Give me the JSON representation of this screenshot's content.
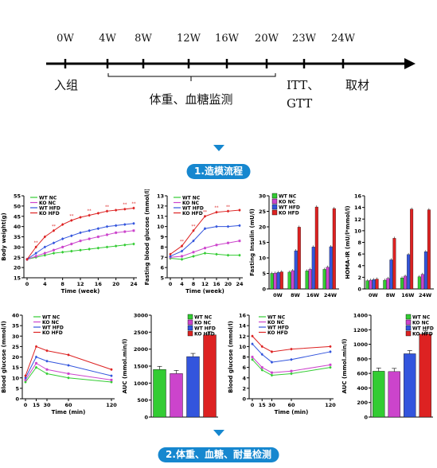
{
  "timeline": {
    "weeks": [
      "0W",
      "4W",
      "8W",
      "12W",
      "16W",
      "20W",
      "23W",
      "24W"
    ],
    "start_label": "入组",
    "monitor_label": "体重、血糖监测",
    "itt_label": "ITT、",
    "gtt_label": "GTT",
    "harvest_label": "取材"
  },
  "step1": {
    "label": "1.造模流程"
  },
  "step2": {
    "label": "2.体重、血糖、耐量检测"
  },
  "colors": {
    "wt_nc": "#33cc33",
    "ko_nc": "#cc44cc",
    "wt_hfd": "#3355dd",
    "ko_hfd": "#dd2222",
    "accent": "#1687cf"
  },
  "chart_data": [
    {
      "id": "body-weight",
      "type": "line",
      "ylabel": "Body weight(g)",
      "xlabel": "Time (week)",
      "x": [
        0,
        2,
        4,
        6,
        8,
        10,
        12,
        14,
        16,
        18,
        20,
        22,
        24
      ],
      "xticks": [
        0,
        4,
        8,
        12,
        16,
        20,
        24
      ],
      "ylim": [
        15,
        55
      ],
      "yticks": [
        15,
        20,
        25,
        30,
        35,
        40,
        45,
        50,
        55
      ],
      "legend": [
        "WT NC",
        "KO NC",
        "WT HFD",
        "KO HFD"
      ],
      "series": [
        {
          "name": "WT NC",
          "values": [
            24,
            25,
            26,
            27,
            27.5,
            28,
            28.5,
            29,
            29.5,
            30,
            30.5,
            31,
            31.5
          ]
        },
        {
          "name": "KO NC",
          "values": [
            24,
            25.5,
            27,
            28.5,
            30,
            31.5,
            33,
            34,
            35,
            36,
            37,
            37.5,
            38
          ]
        },
        {
          "name": "WT HFD",
          "values": [
            24,
            27,
            30,
            32,
            34,
            35.5,
            37,
            38,
            39,
            40,
            40.5,
            41,
            41.5
          ]
        },
        {
          "name": "KO HFD",
          "values": [
            24,
            30,
            35,
            38,
            41,
            43,
            44.5,
            45.5,
            46.5,
            47.5,
            48,
            48.5,
            49
          ]
        }
      ],
      "annotations": [
        "**",
        "**",
        "**",
        "**",
        "**",
        "**",
        "**"
      ]
    },
    {
      "id": "fasting-glucose",
      "type": "line",
      "ylabel": "Fasting blood glucose (mmol/l)",
      "xlabel": "Time (week)",
      "x": [
        0,
        4,
        8,
        12,
        16,
        20,
        24
      ],
      "xticks": [
        0,
        4,
        8,
        12,
        16,
        20,
        24
      ],
      "ylim": [
        5,
        13
      ],
      "yticks": [
        5,
        6,
        7,
        8,
        9,
        10,
        11,
        12,
        13
      ],
      "legend": [
        "WT NC",
        "KO NC",
        "WT HFD",
        "KO HFD"
      ],
      "series": [
        {
          "name": "WT NC",
          "values": [
            6.9,
            6.8,
            7.1,
            7.4,
            7.3,
            7.2,
            7.2
          ]
        },
        {
          "name": "KO NC",
          "values": [
            7.0,
            7.1,
            7.5,
            7.9,
            8.2,
            8.4,
            8.6
          ]
        },
        {
          "name": "WT HFD",
          "values": [
            7.1,
            7.6,
            8.6,
            9.8,
            10.0,
            10.0,
            10.1
          ]
        },
        {
          "name": "KO HFD",
          "values": [
            7.3,
            8.1,
            9.6,
            11.0,
            11.4,
            11.5,
            11.6
          ]
        }
      ],
      "annotations": [
        "**",
        "**",
        "**",
        "**",
        "**"
      ]
    },
    {
      "id": "fasting-insulin",
      "type": "bar",
      "ylabel": "Fasting Insulin (mU/l)",
      "categories": [
        "0W",
        "8W",
        "16W",
        "24W"
      ],
      "ylim": [
        0,
        30
      ],
      "yticks": [
        0,
        5,
        10,
        15,
        20,
        25,
        30
      ],
      "legend": [
        "WT NC",
        "KO NC",
        "WT HFD",
        "KO HFD"
      ],
      "series": [
        {
          "name": "WT NC",
          "values": [
            5.0,
            5.4,
            5.8,
            6.3
          ]
        },
        {
          "name": "KO NC",
          "values": [
            5.1,
            5.9,
            6.3,
            7.0
          ]
        },
        {
          "name": "WT HFD",
          "values": [
            5.3,
            12.3,
            13.5,
            13.6
          ]
        },
        {
          "name": "KO HFD",
          "values": [
            5.5,
            19.9,
            26.4,
            25.9
          ]
        }
      ]
    },
    {
      "id": "homa-ir",
      "type": "bar",
      "ylabel": "HOMA-IR (mU/l*mmol/l)",
      "categories": [
        "0W",
        "8W",
        "16W",
        "24W"
      ],
      "ylim": [
        0,
        16
      ],
      "yticks": [
        0,
        2,
        4,
        6,
        8,
        10,
        12,
        14,
        16
      ],
      "series": [
        {
          "name": "WT NC",
          "values": [
            1.4,
            1.5,
            1.9,
            2.1
          ]
        },
        {
          "name": "KO NC",
          "values": [
            1.5,
            1.8,
            2.2,
            2.5
          ]
        },
        {
          "name": "WT HFD",
          "values": [
            1.6,
            5.0,
            5.9,
            6.4
          ]
        },
        {
          "name": "KO HFD",
          "values": [
            1.7,
            8.7,
            13.7,
            13.6
          ]
        }
      ]
    },
    {
      "id": "gtt-curve",
      "type": "line",
      "ylabel": "Blood glucose (mmol/l)",
      "xlabel": "Time (min)",
      "x": [
        0,
        15,
        30,
        60,
        120
      ],
      "xticks": [
        0,
        15,
        30,
        60,
        120
      ],
      "ylim": [
        0,
        40
      ],
      "yticks": [
        0,
        5,
        10,
        15,
        20,
        25,
        30,
        35,
        40
      ],
      "legend": [
        "WT NC",
        "KO NC",
        "WT HFD",
        "KO HFD"
      ],
      "series": [
        {
          "name": "WT NC",
          "values": [
            8,
            15,
            12,
            10,
            8
          ]
        },
        {
          "name": "KO NC",
          "values": [
            9,
            17,
            14,
            12,
            9
          ]
        },
        {
          "name": "WT HFD",
          "values": [
            10,
            20,
            18,
            16,
            11
          ]
        },
        {
          "name": "KO HFD",
          "values": [
            11,
            25,
            23,
            21,
            14
          ]
        }
      ]
    },
    {
      "id": "gtt-auc",
      "type": "bar",
      "ylabel": "AUC (mmol.min/l)",
      "categories": [
        "WT NC",
        "KO NC",
        "WT HFD",
        "KO HFD"
      ],
      "ylim": [
        0,
        3000
      ],
      "yticks": [
        0,
        500,
        1000,
        1500,
        2000,
        2500,
        3000
      ],
      "legend": [
        "WT NC",
        "KO NC",
        "WT HFD",
        "KO HFD"
      ],
      "values": [
        1400,
        1280,
        1780,
        2420
      ]
    },
    {
      "id": "itt-curve",
      "type": "line",
      "ylabel": "Blood glucose (mmol/l)",
      "xlabel": "Time (min)",
      "x": [
        0,
        15,
        30,
        60,
        120
      ],
      "xticks": [
        0,
        15,
        30,
        60,
        120
      ],
      "ylim": [
        0,
        16
      ],
      "yticks": [
        0,
        2,
        4,
        6,
        8,
        10,
        12,
        14,
        16
      ],
      "legend": [
        "WT NC",
        "KO NC",
        "WT HFD",
        "KO HFD"
      ],
      "series": [
        {
          "name": "WT NC",
          "values": [
            7.5,
            5.5,
            4.5,
            4.8,
            6.0
          ]
        },
        {
          "name": "KO NC",
          "values": [
            8.0,
            6.0,
            5.0,
            5.3,
            6.5
          ]
        },
        {
          "name": "WT HFD",
          "values": [
            10.5,
            8.5,
            7.0,
            7.5,
            9.0
          ]
        },
        {
          "name": "KO HFD",
          "values": [
            12.0,
            10.0,
            9.0,
            9.5,
            10.0
          ]
        }
      ]
    },
    {
      "id": "itt-auc",
      "type": "bar",
      "ylabel": "AUC (mmol.min/l)",
      "categories": [
        "WT NC",
        "KO NC",
        "WT HFD",
        "KO HFD"
      ],
      "ylim": [
        0,
        1400
      ],
      "yticks": [
        0,
        200,
        400,
        600,
        800,
        1000,
        1200,
        1400
      ],
      "legend": [
        "WT NC",
        "KO NC",
        "WT HFD",
        "KO HFD"
      ],
      "values": [
        630,
        625,
        870,
        1140
      ]
    }
  ]
}
